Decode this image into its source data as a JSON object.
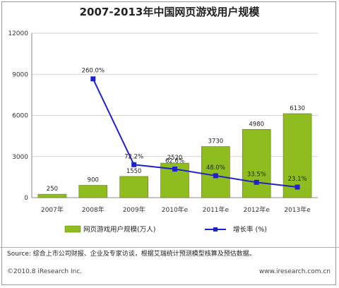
{
  "chart_data": {
    "type": "bar",
    "title": "2007-2013年中国网页游戏用户规模",
    "categories": [
      "2007年",
      "2008年",
      "2009年",
      "2010年e",
      "2011年e",
      "2012年e",
      "2013年e"
    ],
    "series": [
      {
        "name": "网页游戏用户规模(万人)",
        "type": "bar",
        "values": [
          250,
          900,
          1550,
          2520,
          3730,
          4980,
          6130
        ],
        "labels": [
          "250",
          "900",
          "1550",
          "2520",
          "3730",
          "4980",
          "6130"
        ],
        "color": "#8fbc1e"
      },
      {
        "name": "增长率 (%)",
        "type": "line",
        "values": [
          null,
          260.0,
          72.2,
          62.6,
          48.0,
          33.5,
          23.1
        ],
        "labels": [
          null,
          "260.0%",
          "72.2%",
          "62.6%",
          "48.0%",
          "33.5%",
          "23.1%"
        ],
        "color": "#1f22c8"
      }
    ],
    "yticks": [
      "0",
      "3000",
      "6000",
      "9000",
      "12000"
    ],
    "ylim": [
      0,
      12000
    ],
    "grid": true,
    "legend": "bottom"
  },
  "footer": {
    "source": "Source: 综合上市公司财报、企业及专家访谈，根据艾瑞统计预测模型核算及预估数据。",
    "copyright": "©2010.8 iResearch Inc.",
    "website": "www.iresearch.com.cn"
  }
}
